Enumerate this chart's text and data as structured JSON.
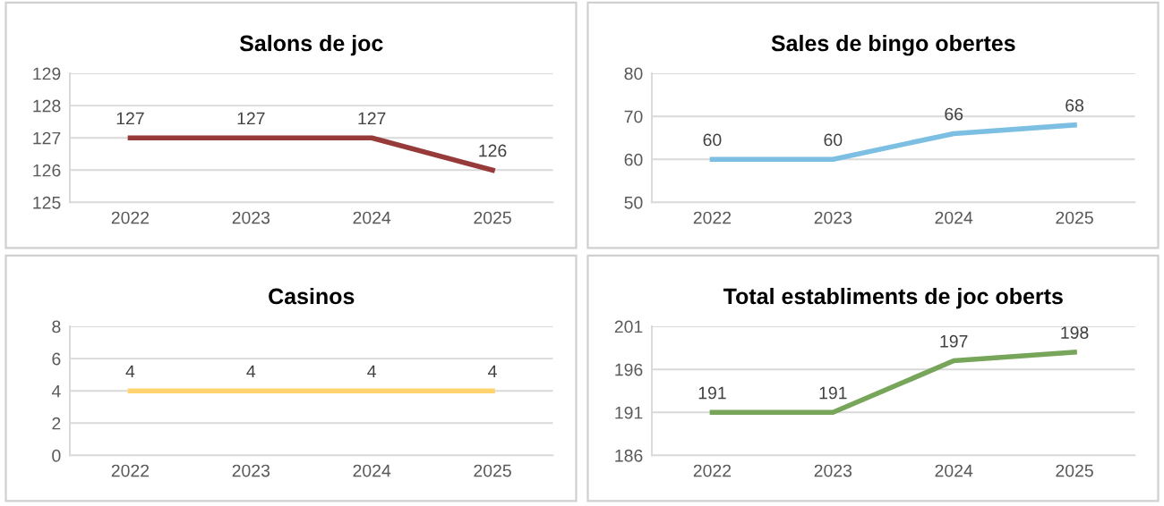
{
  "chart_data": [
    {
      "type": "line",
      "title": "Salons de joc",
      "categories": [
        "2022",
        "2023",
        "2024",
        "2025"
      ],
      "series": [
        {
          "color": "#963a3a",
          "values": [
            127,
            127,
            127,
            126
          ]
        }
      ],
      "ylim": [
        125,
        129
      ],
      "yticks": [
        125,
        126,
        127,
        128,
        129
      ],
      "grid": "y",
      "data_labels": true
    },
    {
      "type": "line",
      "title": "Sales de bingo obertes",
      "categories": [
        "2022",
        "2023",
        "2024",
        "2025"
      ],
      "series": [
        {
          "color": "#7cbfe3",
          "values": [
            60,
            60,
            66,
            68
          ]
        }
      ],
      "ylim": [
        50,
        80
      ],
      "yticks": [
        50,
        60,
        70,
        80
      ],
      "grid": "y",
      "data_labels": true
    },
    {
      "type": "line",
      "title": "Casinos",
      "categories": [
        "2022",
        "2023",
        "2024",
        "2025"
      ],
      "series": [
        {
          "color": "#ffd36e",
          "values": [
            4,
            4,
            4,
            4
          ]
        }
      ],
      "ylim": [
        0,
        8
      ],
      "yticks": [
        0,
        2,
        4,
        6,
        8
      ],
      "grid": "y",
      "data_labels": true
    },
    {
      "type": "line",
      "title": "Total establiments de joc oberts",
      "categories": [
        "2022",
        "2023",
        "2024",
        "2025"
      ],
      "series": [
        {
          "color": "#77a55a",
          "values": [
            191,
            191,
            197,
            198
          ]
        }
      ],
      "ylim": [
        186,
        201
      ],
      "yticks": [
        186,
        191,
        196,
        201
      ],
      "grid": "y",
      "data_labels": true
    }
  ]
}
